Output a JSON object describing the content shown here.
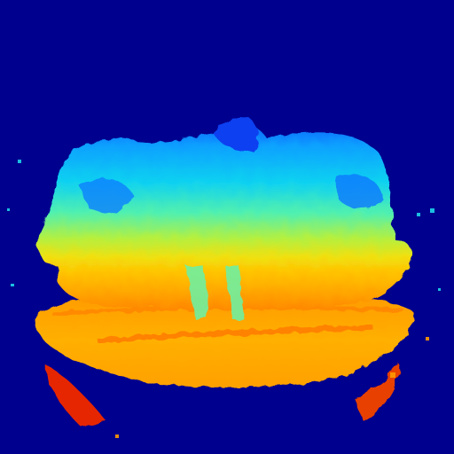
{
  "image": {
    "kind": "depth-map",
    "colormap": "jet",
    "background_color": "#00008e",
    "colors": {
      "far": "#0a32f0",
      "mid_far": "#10b4ff",
      "mid": "#3cf0c8",
      "mid_near": "#c8f032",
      "near": "#ffc000",
      "nearer": "#ff8c00",
      "nearest": "#e62800"
    }
  }
}
